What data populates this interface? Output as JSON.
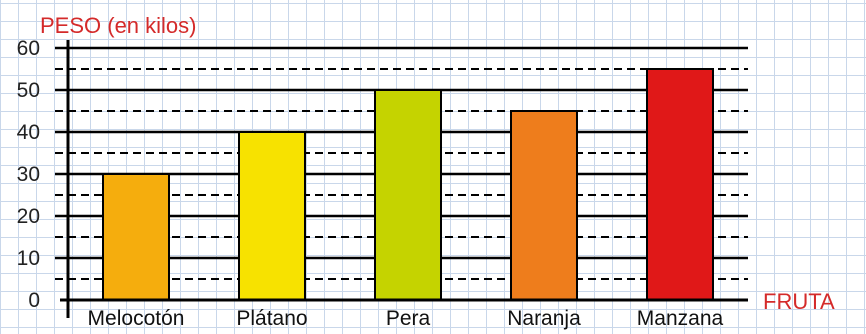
{
  "chart_data": {
    "type": "bar",
    "ylabel": "PESO (en kilos)",
    "xlabel": "FRUTA",
    "categories": [
      "Melocotón",
      "Plátano",
      "Pera",
      "Naranja",
      "Manzana"
    ],
    "values": [
      30,
      40,
      50,
      45,
      55
    ],
    "colors": [
      "#f5ad0d",
      "#f7e200",
      "#c5d300",
      "#ee7d1c",
      "#e01818"
    ],
    "ylim": [
      0,
      60
    ],
    "yticks": [
      "0",
      "10",
      "20",
      "30",
      "40",
      "50",
      "60"
    ],
    "grid": {
      "major": "solid",
      "minor": "dashed"
    },
    "label_color": "#d42a2a"
  }
}
